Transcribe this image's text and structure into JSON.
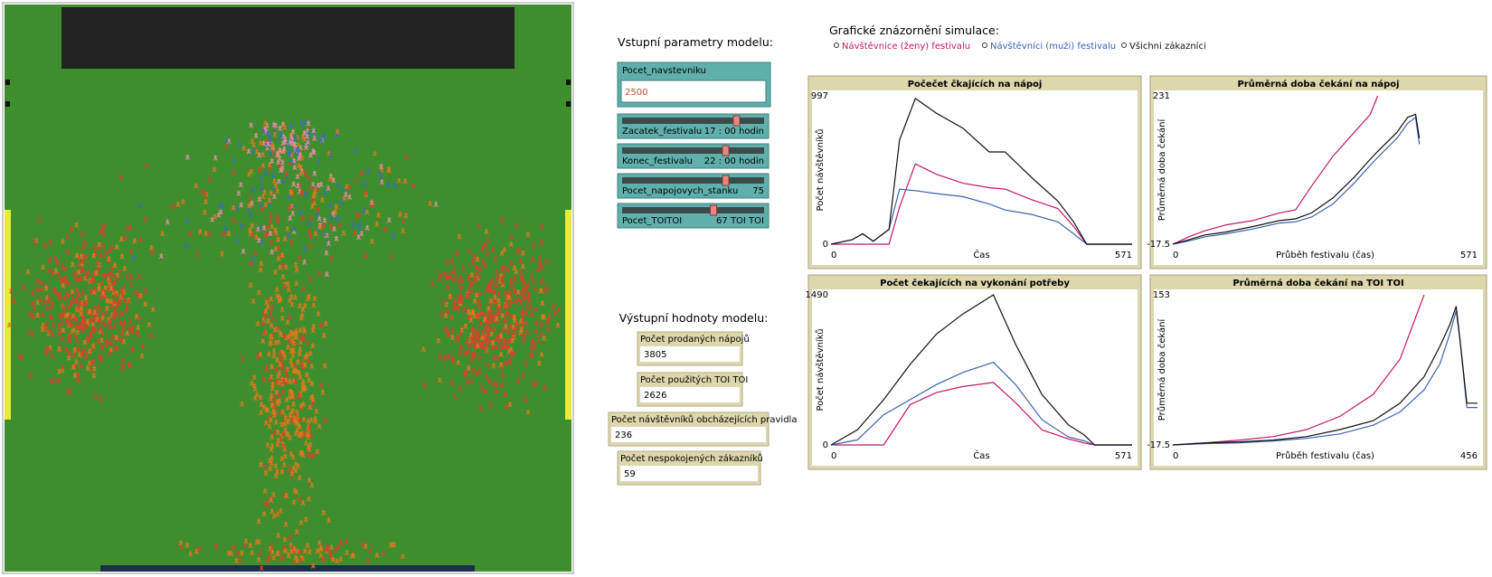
{
  "inputs": {
    "title": "Vstupní parametry modelu:",
    "input": {
      "label": "Pocet_navstevniku",
      "value": 2500
    },
    "sliders": [
      {
        "label": "Zacatek_festivalu",
        "display": "17 : 00 hodin"
      },
      {
        "label": "Konec_festivalu",
        "display": "22 : 00 hodin"
      },
      {
        "label": "Pocet_napojovych_stanku",
        "display": 75
      },
      {
        "label": "Pocet_TOITOI",
        "display": "67 TOI TOI"
      }
    ]
  },
  "outputs": {
    "title": "Výstupní hodnoty modelu:",
    "monitors": [
      {
        "label": "Počet prodaných nápojů",
        "value": 3805
      },
      {
        "label": "Počet použitých TOI TOI",
        "value": 2626
      },
      {
        "label": "Počet návštěvníků obcházejících pravidla",
        "value": 236
      },
      {
        "label": "Počet nespokojených zákazníků",
        "value": 59
      }
    ]
  },
  "plots_title": "Grafické znázornění simulace:",
  "legend": [
    {
      "name": "Návštěvnice (ženy) festivalu",
      "color": "#c2186b"
    },
    {
      "name": "Návštěvníci (muži) festivalu",
      "color": "#3b62b0"
    },
    {
      "name": "Všichni zákazníci",
      "color": "#111111"
    }
  ],
  "chart_data": [
    {
      "type": "line",
      "title": "Počečet čkajících na nápoj",
      "x_label": "Čas",
      "y_label": "Počet návštěvníků",
      "xlim": [
        0,
        571
      ],
      "ylim": [
        0,
        997
      ],
      "x": [
        0,
        40,
        60,
        80,
        110,
        130,
        160,
        200,
        250,
        300,
        330,
        380,
        430,
        460,
        485,
        571
      ],
      "series": [
        {
          "color": "#c2186b",
          "values": [
            0,
            0,
            0,
            0,
            0,
            250,
            540,
            470,
            410,
            380,
            370,
            300,
            240,
            120,
            0,
            0
          ]
        },
        {
          "color": "#3b62b0",
          "values": [
            0,
            30,
            70,
            20,
            100,
            370,
            360,
            340,
            320,
            270,
            230,
            200,
            150,
            70,
            0,
            0
          ]
        },
        {
          "color": "#111111",
          "values": [
            0,
            30,
            70,
            20,
            100,
            700,
            980,
            880,
            780,
            620,
            620,
            450,
            290,
            150,
            0,
            0
          ]
        }
      ]
    },
    {
      "type": "line",
      "title": "Průměrná doba čekání na nápoj",
      "x_label": "Průběh festivalu (čas)",
      "y_label": "Průměrná doba čekání",
      "xlim": [
        0,
        571
      ],
      "ylim": [
        -17.5,
        231
      ],
      "x": [
        0,
        30,
        60,
        100,
        150,
        200,
        230,
        260,
        300,
        340,
        370,
        384,
        420,
        440,
        455,
        462
      ],
      "series": [
        {
          "color": "#c2186b",
          "values": [
            -17.5,
            -5,
            5,
            15,
            22,
            35,
            40,
            80,
            130,
            170,
            200,
            231,
            null,
            null,
            null,
            null
          ]
        },
        {
          "color": "#3b62b0",
          "values": [
            -17.5,
            -12,
            -5,
            0,
            8,
            18,
            20,
            28,
            50,
            85,
            115,
            128,
            160,
            185,
            195,
            150
          ]
        },
        {
          "color": "#111111",
          "values": [
            -17.5,
            -10,
            -2,
            3,
            12,
            22,
            25,
            35,
            60,
            95,
            125,
            138,
            170,
            195,
            200,
            160
          ]
        }
      ]
    },
    {
      "type": "line",
      "title": "Počet čekajících na vykonání potřeby",
      "x_label": "Čas",
      "y_label": "Počet návštěvníků",
      "xlim": [
        0,
        571
      ],
      "ylim": [
        0,
        1490
      ],
      "x": [
        0,
        50,
        100,
        150,
        200,
        250,
        308,
        350,
        400,
        450,
        480,
        500,
        571
      ],
      "series": [
        {
          "color": "#c2186b",
          "values": [
            0,
            0,
            0,
            400,
            520,
            580,
            620,
            420,
            150,
            60,
            20,
            0,
            0
          ]
        },
        {
          "color": "#3b62b0",
          "values": [
            0,
            50,
            300,
            450,
            600,
            720,
            820,
            600,
            250,
            80,
            40,
            0,
            0
          ]
        },
        {
          "color": "#111111",
          "values": [
            0,
            150,
            450,
            800,
            1100,
            1300,
            1490,
            1000,
            500,
            200,
            100,
            0,
            0
          ]
        }
      ]
    },
    {
      "type": "line",
      "title": "Průměrná doba čekání na TOI TOI",
      "x_label": "Průběh festivalu (čas)",
      "y_label": "Průměrná doba čekání",
      "xlim": [
        0,
        456
      ],
      "ylim": [
        -17.5,
        153
      ],
      "x": [
        0,
        50,
        100,
        150,
        200,
        250,
        300,
        340,
        376,
        400,
        415,
        424,
        430,
        440,
        456
      ],
      "series": [
        {
          "color": "#c2186b",
          "values": [
            -17.5,
            -15,
            -12,
            -8,
            0,
            15,
            40,
            80,
            153,
            null,
            null,
            null,
            null,
            null,
            null
          ]
        },
        {
          "color": "#3b62b0",
          "values": [
            -17.5,
            -16,
            -15,
            -13,
            -10,
            -5,
            5,
            20,
            45,
            75,
            110,
            135,
            100,
            25,
            25
          ]
        },
        {
          "color": "#111111",
          "values": [
            -17.5,
            -15,
            -14,
            -12,
            -8,
            0,
            10,
            30,
            60,
            95,
            120,
            140,
            100,
            30,
            30
          ]
        }
      ]
    }
  ]
}
